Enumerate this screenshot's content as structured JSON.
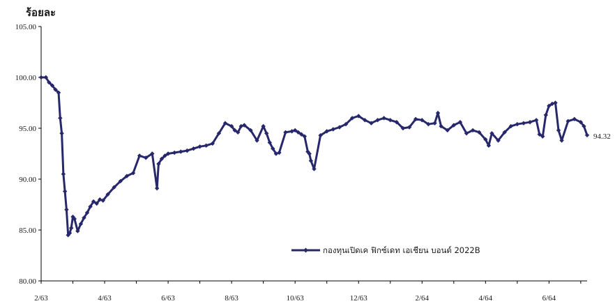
{
  "chart_data": {
    "type": "line",
    "title": "",
    "ylabel": "ร้อยละ",
    "xlabel": "",
    "ylim": [
      80,
      105
    ],
    "y_ticks": [
      "80.00",
      "85.00",
      "90.00",
      "95.00",
      "100.00",
      "105.00"
    ],
    "x_ticks": [
      "2/63",
      "4/63",
      "6/63",
      "8/63",
      "10/63",
      "12/63",
      "2/64",
      "4/64",
      "6/64"
    ],
    "x_index_range": [
      0,
      17.2
    ],
    "legend_position": "inside-bottom-right",
    "grid": false,
    "series": [
      {
        "name": "กองทุนเปิดเค ฟิกซ์เดท เอเชียน บอนด์ 2022B",
        "color": "#27276b",
        "x": [
          0,
          0.15,
          0.25,
          0.35,
          0.45,
          0.55,
          0.6,
          0.65,
          0.7,
          0.75,
          0.8,
          0.85,
          0.9,
          0.95,
          1.0,
          1.05,
          1.15,
          1.25,
          1.35,
          1.45,
          1.55,
          1.65,
          1.75,
          1.85,
          1.95,
          2.1,
          2.3,
          2.5,
          2.7,
          2.9,
          3.1,
          3.3,
          3.5,
          3.65,
          3.7,
          3.8,
          3.9,
          4.0,
          4.2,
          4.4,
          4.6,
          4.8,
          5.0,
          5.2,
          5.4,
          5.6,
          5.8,
          6.0,
          6.1,
          6.2,
          6.3,
          6.4,
          6.6,
          6.8,
          7.0,
          7.1,
          7.2,
          7.3,
          7.4,
          7.5,
          7.7,
          7.9,
          8.0,
          8.1,
          8.2,
          8.3,
          8.4,
          8.45,
          8.5,
          8.6,
          8.8,
          9.0,
          9.2,
          9.4,
          9.6,
          9.8,
          10.0,
          10.2,
          10.4,
          10.6,
          10.8,
          11.0,
          11.2,
          11.4,
          11.6,
          11.8,
          12.0,
          12.2,
          12.4,
          12.5,
          12.6,
          12.8,
          13.0,
          13.2,
          13.4,
          13.6,
          13.8,
          14.0,
          14.1,
          14.2,
          14.4,
          14.6,
          14.8,
          15.0,
          15.2,
          15.4,
          15.6,
          15.7,
          15.8,
          15.9,
          16.0,
          16.1,
          16.2,
          16.3,
          16.4,
          16.6,
          16.8,
          17.0,
          17.1,
          17.2
        ],
        "values": [
          100.0,
          100.0,
          99.5,
          99.2,
          98.8,
          98.5,
          96.0,
          94.5,
          90.5,
          88.8,
          87.0,
          84.5,
          84.7,
          85.2,
          86.3,
          86.1,
          84.9,
          85.6,
          86.2,
          86.7,
          87.3,
          87.8,
          87.6,
          88.0,
          87.9,
          88.5,
          89.2,
          89.8,
          90.3,
          90.6,
          92.3,
          92.1,
          92.5,
          89.1,
          91.5,
          92.0,
          92.3,
          92.5,
          92.6,
          92.7,
          92.8,
          93.0,
          93.2,
          93.3,
          93.5,
          94.5,
          95.5,
          95.2,
          94.8,
          94.6,
          95.2,
          95.3,
          94.8,
          93.8,
          95.2,
          94.5,
          93.6,
          93.0,
          92.5,
          92.6,
          94.6,
          94.7,
          94.8,
          94.6,
          94.4,
          94.2,
          92.7,
          92.5,
          91.8,
          91.0,
          94.3,
          94.7,
          94.9,
          95.1,
          95.4,
          96.0,
          96.2,
          95.8,
          95.5,
          95.8,
          96.0,
          95.8,
          95.6,
          95.0,
          95.1,
          95.9,
          95.8,
          95.4,
          95.5,
          96.5,
          95.2,
          94.8,
          95.3,
          95.6,
          94.5,
          94.8,
          94.6,
          93.9,
          93.3,
          94.5,
          93.8,
          94.6,
          95.2,
          95.4,
          95.5,
          95.6,
          95.8,
          94.4,
          94.2,
          96.3,
          97.2,
          97.4,
          97.5,
          94.8,
          93.8,
          95.7,
          95.9,
          95.6,
          95.2,
          94.32
        ]
      }
    ],
    "annotations": [
      "94.32"
    ]
  }
}
